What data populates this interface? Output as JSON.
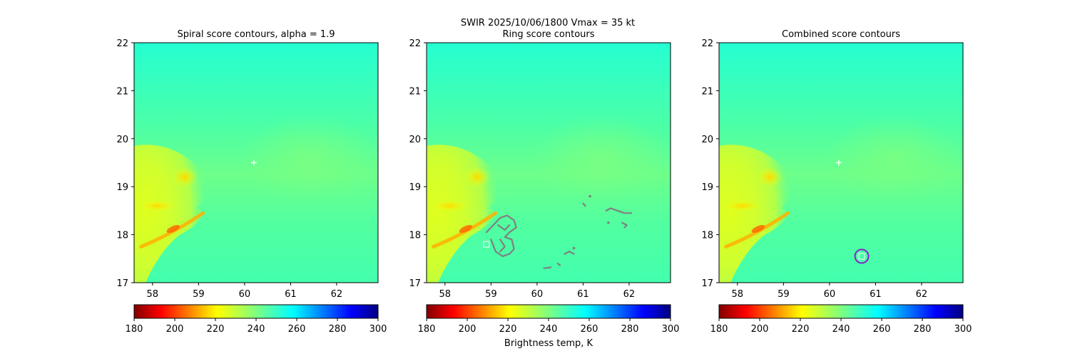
{
  "suptitle_line1": "SWIR  2025/10/06/1800    Vmax = 35 kt",
  "colorbar_label": "Brightness temp, K",
  "colormap": "jet",
  "colors": {
    "background_field": "#44ffb4",
    "contour": "#808080",
    "marker_cross": "#ffffff",
    "combined_circle": "#8b1fc8"
  },
  "chart_data": [
    {
      "type": "heatmap",
      "title": "Spiral score contours, alpha =  1.9",
      "xlim": [
        57.6,
        62.9
      ],
      "ylim": [
        17,
        22
      ],
      "xticks": [
        58,
        59,
        60,
        61,
        62
      ],
      "yticks": [
        17,
        18,
        19,
        20,
        21,
        22
      ],
      "markers": [
        {
          "type": "cross",
          "x": 60.2,
          "y": 19.5
        }
      ],
      "contours": [],
      "colorbar": {
        "min": 180,
        "max": 300,
        "ticks": [
          180,
          200,
          220,
          240,
          260,
          280,
          300
        ],
        "label": ""
      }
    },
    {
      "type": "heatmap",
      "title": "Ring score contours",
      "xlim": [
        57.6,
        62.9
      ],
      "ylim": [
        17,
        22
      ],
      "xticks": [
        58,
        59,
        60,
        61,
        62
      ],
      "yticks": [
        17,
        18,
        19,
        20,
        21,
        22
      ],
      "markers": [
        {
          "type": "box",
          "x": 58.9,
          "y": 17.8
        }
      ],
      "contours": [
        [
          [
            58.9,
            18.05
          ],
          [
            59.05,
            18.2
          ],
          [
            59.2,
            18.35
          ],
          [
            59.35,
            18.4
          ],
          [
            59.5,
            18.3
          ],
          [
            59.55,
            18.15
          ],
          [
            59.4,
            18.05
          ],
          [
            59.3,
            17.95
          ],
          [
            59.45,
            17.9
          ],
          [
            59.5,
            17.7
          ],
          [
            59.4,
            17.6
          ],
          [
            59.25,
            17.55
          ],
          [
            59.1,
            17.65
          ],
          [
            59.0,
            17.9
          ]
        ],
        [
          [
            59.15,
            18.2
          ],
          [
            59.3,
            18.1
          ],
          [
            59.4,
            18.2
          ]
        ],
        [
          [
            59.2,
            17.9
          ],
          [
            59.3,
            17.75
          ],
          [
            59.2,
            17.65
          ]
        ],
        [
          [
            61.5,
            18.5
          ],
          [
            61.6,
            18.55
          ],
          [
            61.75,
            18.5
          ],
          [
            61.9,
            18.45
          ],
          [
            62.05,
            18.45
          ]
        ],
        [
          [
            61.85,
            18.25
          ],
          [
            61.95,
            18.2
          ],
          [
            61.9,
            18.15
          ]
        ],
        [
          [
            61.55,
            18.25
          ]
        ],
        [
          [
            61.0,
            18.65
          ],
          [
            61.05,
            18.6
          ]
        ],
        [
          [
            61.15,
            18.8
          ]
        ],
        [
          [
            60.6,
            17.6
          ],
          [
            60.7,
            17.65
          ],
          [
            60.8,
            17.6
          ]
        ],
        [
          [
            60.8,
            17.72
          ]
        ],
        [
          [
            60.15,
            17.3
          ],
          [
            60.3,
            17.32
          ]
        ],
        [
          [
            60.45,
            17.4
          ],
          [
            60.5,
            17.36
          ]
        ]
      ],
      "colorbar": {
        "min": 180,
        "max": 300,
        "ticks": [
          180,
          200,
          220,
          240,
          260,
          280,
          300
        ],
        "label": "Brightness temp, K"
      }
    },
    {
      "type": "heatmap",
      "title": "Combined score contours",
      "xlim": [
        57.6,
        62.9
      ],
      "ylim": [
        17,
        22
      ],
      "xticks": [
        58,
        59,
        60,
        61,
        62
      ],
      "yticks": [
        17,
        18,
        19,
        20,
        21,
        22
      ],
      "markers": [
        {
          "type": "cross",
          "x": 60.2,
          "y": 19.5
        },
        {
          "type": "circle",
          "x": 60.7,
          "y": 17.55
        },
        {
          "type": "box",
          "x": 60.7,
          "y": 17.55
        }
      ],
      "contours": [],
      "colorbar": {
        "min": 180,
        "max": 300,
        "ticks": [
          180,
          200,
          220,
          240,
          260,
          280,
          300
        ],
        "label": ""
      }
    }
  ]
}
